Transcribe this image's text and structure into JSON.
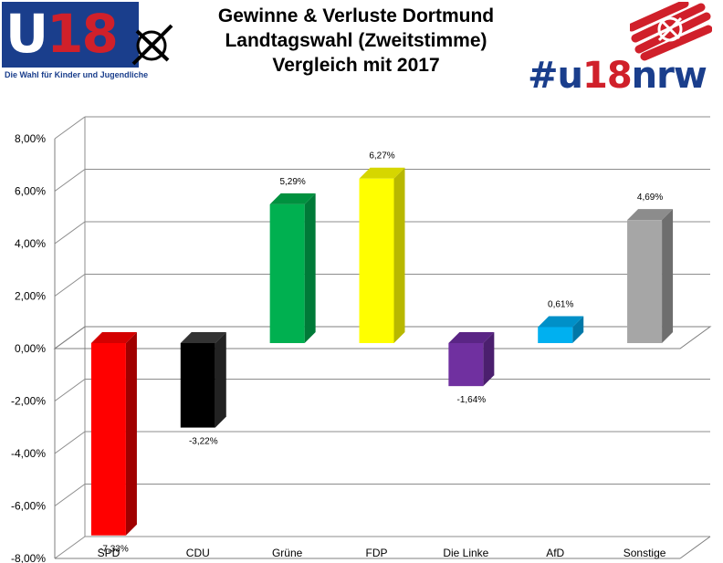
{
  "header": {
    "title_line1": "Gewinne & Verluste Dortmund",
    "title_line2": "Landtagswahl (Zweitstimme)",
    "title_line3": "Vergleich mit 2017"
  },
  "logo_left": {
    "word_prefix": "U",
    "word_number": "18",
    "tagline": "Die Wahl für Kinder und Jugendliche",
    "icon": "ballot-cross-icon"
  },
  "logo_right": {
    "hashtag_prefix": "#u",
    "hashtag_number": "18",
    "hashtag_suffix": "nrw",
    "icon": "ballot-stamp-icon"
  },
  "colors": {
    "brand_blue": "#1a3e8c",
    "brand_red": "#d0202a"
  },
  "chart_data": {
    "type": "bar",
    "categories": [
      "SPD",
      "CDU",
      "Grüne",
      "FDP",
      "Die Linke",
      "AfD",
      "Sonstige"
    ],
    "values": [
      -7.33,
      -3.22,
      5.29,
      6.27,
      -1.64,
      0.61,
      4.69
    ],
    "data_labels": [
      "-7,33%",
      "-3,22%",
      "5,29%",
      "6,27%",
      "-1,64%",
      "0,61%",
      "4,69%"
    ],
    "colors": [
      "#ff0000",
      "#000000",
      "#00b050",
      "#ffff00",
      "#7030a0",
      "#00b0f0",
      "#a6a6a6"
    ],
    "side_colors": [
      "#a00000",
      "#222222",
      "#007a38",
      "#b8b800",
      "#4b1f6e",
      "#0078a8",
      "#6e6e6e"
    ],
    "top_colors": [
      "#d40000",
      "#333333",
      "#00913f",
      "#d6d600",
      "#5a2585",
      "#0090c8",
      "#8c8c8c"
    ],
    "ylim": [
      -8,
      8
    ],
    "yticks": [
      8,
      6,
      4,
      2,
      0,
      -2,
      -4,
      -6,
      -8
    ],
    "ytick_labels": [
      "8,00%",
      "6,00%",
      "4,00%",
      "2,00%",
      "0,00%",
      "-2,00%",
      "-4,00%",
      "-6,00%",
      "-8,00%"
    ],
    "grid": true,
    "style": "3d-column"
  }
}
